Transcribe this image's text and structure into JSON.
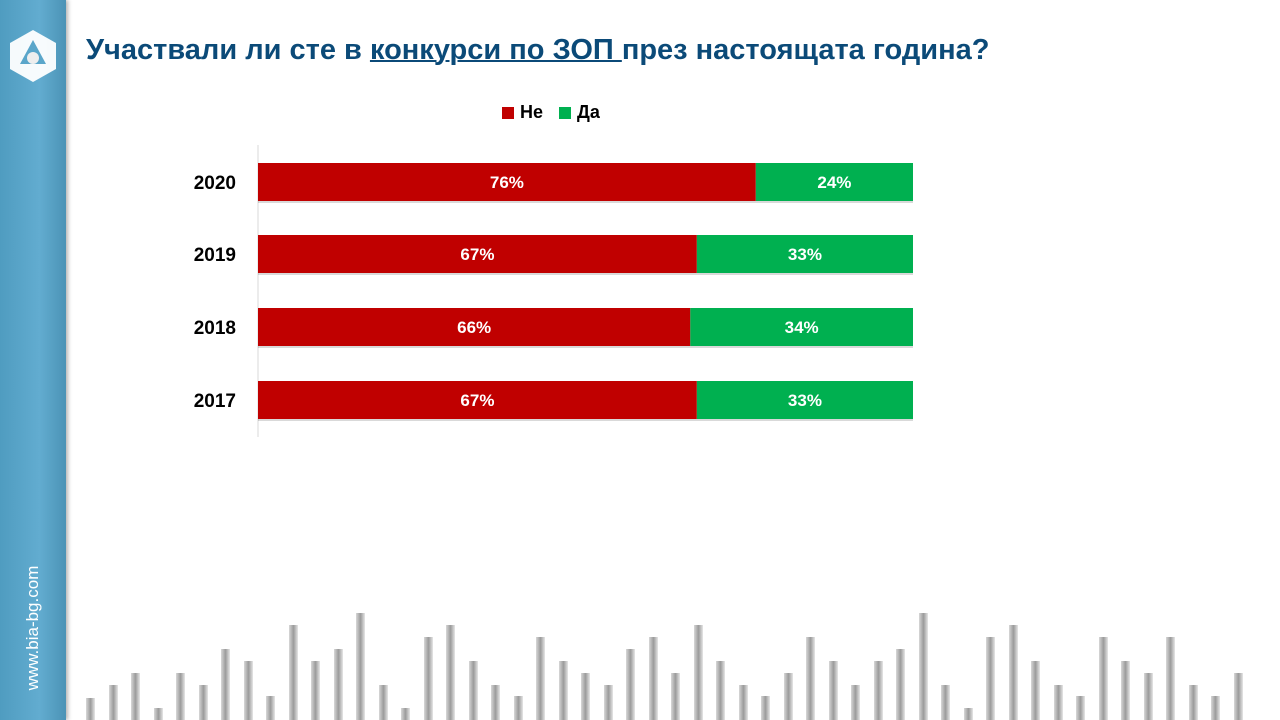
{
  "title": {
    "pre": "Участвали  ли сте в ",
    "underlined": "конкурси по ЗОП ",
    "post": "през настоящата  година?"
  },
  "sidebar": {
    "website": "www.bia-bg.com"
  },
  "colors": {
    "ne": "#c00000",
    "da": "#00b050",
    "title": "#0b4a78"
  },
  "chart_data": {
    "type": "bar",
    "orientation": "horizontal",
    "stacked": "100%",
    "title": "Участвали  ли сте в конкурси по ЗОП през настоящата  година?",
    "categories": [
      "2020",
      "2019",
      "2018",
      "2017"
    ],
    "series": [
      {
        "name": "Не",
        "values": [
          76,
          67,
          66,
          67
        ],
        "labels": [
          "76%",
          "67%",
          "66%",
          "67%"
        ]
      },
      {
        "name": "Да",
        "values": [
          24,
          33,
          34,
          33
        ],
        "labels": [
          "24%",
          "33%",
          "34%",
          "33%"
        ]
      }
    ],
    "xlim": [
      0,
      100
    ],
    "legend": "top",
    "grid": false
  }
}
